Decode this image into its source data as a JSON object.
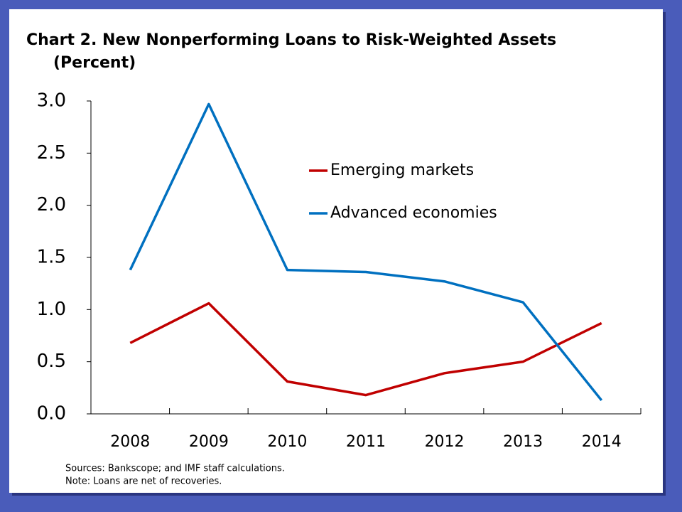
{
  "chart_data": {
    "type": "line",
    "title": "Chart 2. New Nonperforming Loans to Risk-Weighted Assets",
    "subtitle": "(Percent)",
    "categories": [
      "2008",
      "2009",
      "2010",
      "2011",
      "2012",
      "2013",
      "2014"
    ],
    "series": [
      {
        "name": "Emerging markets",
        "color": "#c00000",
        "values": [
          0.68,
          1.06,
          0.31,
          0.18,
          0.39,
          0.5,
          0.87
        ]
      },
      {
        "name": "Advanced economies",
        "color": "#0070c0",
        "values": [
          1.38,
          2.97,
          1.38,
          1.36,
          1.27,
          1.07,
          0.13
        ]
      }
    ],
    "ylim": [
      0,
      3
    ],
    "yticks": [
      {
        "value": 0,
        "label": "0.0"
      },
      {
        "value": 0.5,
        "label": "0.5"
      },
      {
        "value": 1,
        "label": "1.0"
      },
      {
        "value": 1.5,
        "label": "1.5"
      },
      {
        "value": 2,
        "label": "2.0"
      },
      {
        "value": 2.5,
        "label": "2.5"
      },
      {
        "value": 3,
        "label": "3.0"
      }
    ],
    "grid": false,
    "sources": "Sources: Bankscope; and IMF staff calculations.",
    "note": "Note: Loans are net of recoveries."
  }
}
